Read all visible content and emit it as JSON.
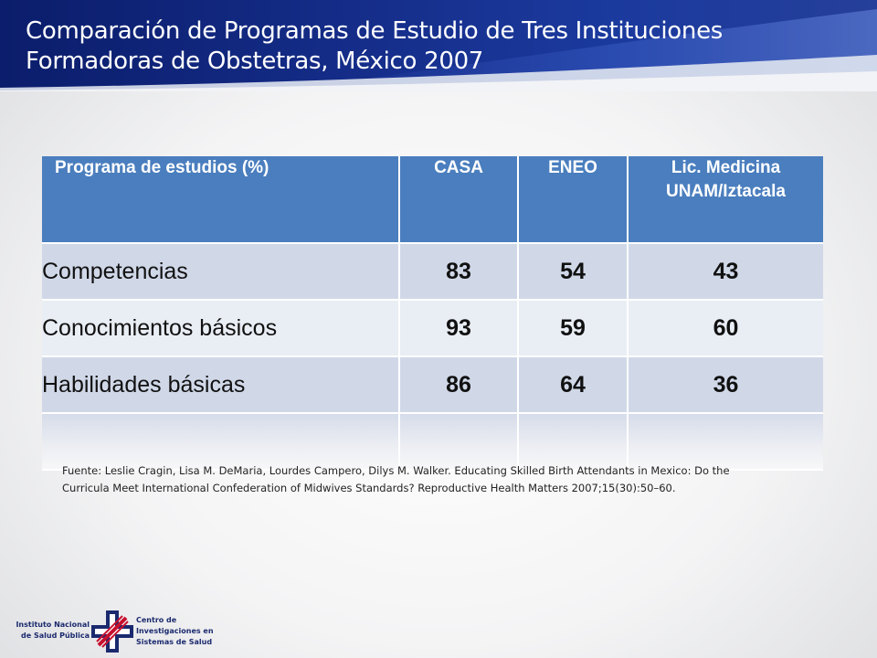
{
  "slide": {
    "title_line1": "Comparación de Programas de Estudio de Tres Instituciones",
    "title_line2": "Formadoras de Obstetras, México 2007"
  },
  "table": {
    "headers": {
      "col0": "Programa de estudios (%)",
      "col1": "CASA",
      "col2": "ENEO",
      "col3_line1": "Lic. Medicina",
      "col3_line2": "UNAM/Iztacala"
    },
    "rows": [
      {
        "label": "Competencias",
        "casa": "83",
        "eneo": "54",
        "unam": "43"
      },
      {
        "label": "Conocimientos básicos",
        "casa": "93",
        "eneo": "59",
        "unam": "60"
      },
      {
        "label": "Habilidades básicas",
        "casa": "86",
        "eneo": "64",
        "unam": "36"
      }
    ]
  },
  "source": {
    "line1": "Fuente: Leslie Cragin, Lisa M. DeMaria, Lourdes Campero, Dilys M. Walker. Educating Skilled Birth Attendants in Mexico: Do the",
    "line2": "Curricula Meet International Confederation of Midwives Standards? Reproductive Health Matters 2007;15(30):50–60."
  },
  "footer": {
    "left_line1": "Instituto Nacional",
    "left_line2": "de Salud Pública",
    "right_line1": "Centro de",
    "right_line2": "Investigaciones en",
    "right_line3": "Sistemas de Salud",
    "logo_icon": "insp-cross-logo-icon"
  },
  "colors": {
    "header_bg": "#162f8c",
    "table_header": "#4a7ebe",
    "row_odd": "#d0d8e8",
    "row_even": "#e9edf4"
  }
}
